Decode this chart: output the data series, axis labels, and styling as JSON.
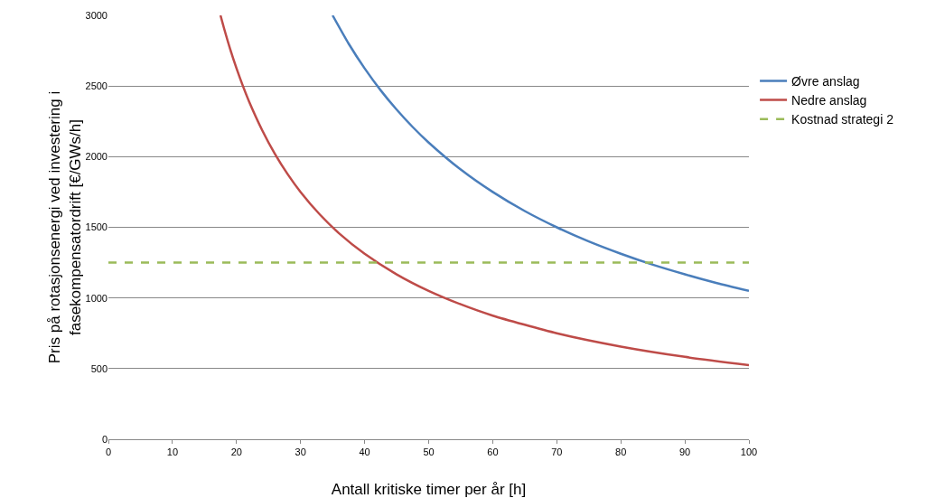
{
  "chart_data": {
    "type": "line",
    "xlabel": "Antall kritiske timer per år [h]",
    "ylabel": "Pris på rotasjonsenergi ved investering i\nfasekompensatordrift [€/GWs/h]",
    "xlim": [
      0,
      100
    ],
    "xticks": [
      0,
      10,
      20,
      30,
      40,
      50,
      60,
      70,
      80,
      90,
      100
    ],
    "ylim": [
      0,
      3000
    ],
    "yticks": [
      0,
      500,
      1000,
      1500,
      2000,
      2500,
      3000
    ],
    "grid": "y",
    "legend": "right",
    "marker": "none",
    "series": [
      {
        "name": "Øvre anslag",
        "color": "#4a7ebb",
        "line_style": "solid",
        "x": [
          35,
          37.5,
          40,
          42.5,
          45,
          47.5,
          50,
          55,
          60,
          65,
          70,
          75,
          80,
          85,
          90,
          95,
          100
        ],
        "values": [
          3000,
          2800,
          2625,
          2470,
          2333,
          2210,
          2100,
          1909,
          1750,
          1615,
          1500,
          1400,
          1313,
          1235,
          1167,
          1105,
          1050
        ]
      },
      {
        "name": "Nedre anslag",
        "color": "#be4b48",
        "line_style": "solid",
        "x": [
          17.5,
          18,
          19,
          20,
          21,
          22,
          24,
          26,
          28,
          30,
          33,
          36,
          40,
          45,
          50,
          55,
          60,
          70,
          80,
          90,
          100
        ],
        "values": [
          3000,
          2917,
          2763,
          2625,
          2500,
          2386,
          2188,
          2019,
          1875,
          1750,
          1591,
          1458,
          1313,
          1167,
          1050,
          955,
          875,
          750,
          656,
          583,
          525
        ]
      },
      {
        "name": "Kostnad strategi 2",
        "color": "#9bbb59",
        "line_style": "dashed",
        "x": [
          0,
          100
        ],
        "values": [
          1250,
          1250
        ]
      }
    ]
  }
}
